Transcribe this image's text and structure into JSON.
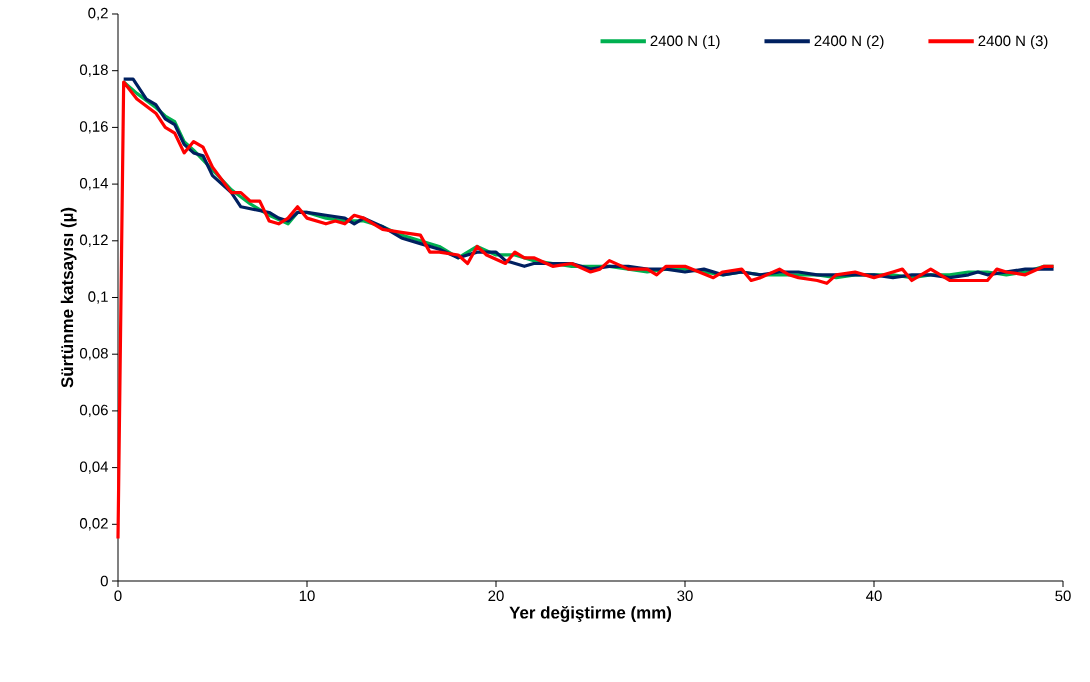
{
  "chart_data": {
    "type": "line",
    "xlabel": "Yer değiştirme (mm)",
    "ylabel": "Sürtünme katsayısı (µ)",
    "xlim": [
      0,
      50
    ],
    "ylim": [
      0,
      0.2
    ],
    "xticks": [
      0,
      10,
      20,
      30,
      40,
      50
    ],
    "yticks": [
      0,
      {
        "value": 0.02,
        "label": "0,02"
      },
      {
        "value": 0.04,
        "label": "0,04"
      },
      {
        "value": 0.06,
        "label": "0,06"
      },
      {
        "value": 0.08,
        "label": "0,08"
      },
      {
        "value": 0.1,
        "label": "0,1"
      },
      {
        "value": 0.12,
        "label": "0,12"
      },
      {
        "value": 0.14,
        "label": "0,14"
      },
      {
        "value": 0.16,
        "label": "0,16"
      },
      {
        "value": 0.18,
        "label": "0,18"
      },
      {
        "value": 0.2,
        "label": "0,2"
      }
    ],
    "grid": false,
    "legend": "top right",
    "marker": "none",
    "line_style": "solid",
    "series": [
      {
        "name": "2400 N (1)",
        "color": "#00b050",
        "x": [
          0.3,
          1,
          2,
          2.5,
          3,
          3.5,
          4,
          5,
          6,
          7,
          8,
          9,
          9.5,
          10,
          11,
          12,
          13,
          14,
          15,
          16,
          17,
          18,
          19,
          20,
          21,
          22,
          23,
          24,
          25,
          26,
          27,
          28,
          29,
          30,
          31,
          32,
          33,
          34,
          35,
          36,
          37,
          38,
          39,
          40,
          41,
          42,
          43,
          44,
          45,
          46,
          47,
          48,
          49,
          49.5
        ],
        "values": [
          0.176,
          0.172,
          0.167,
          0.164,
          0.162,
          0.155,
          0.152,
          0.145,
          0.138,
          0.133,
          0.129,
          0.126,
          0.13,
          0.13,
          0.128,
          0.127,
          0.127,
          0.125,
          0.122,
          0.12,
          0.118,
          0.114,
          0.118,
          0.115,
          0.115,
          0.113,
          0.112,
          0.111,
          0.111,
          0.111,
          0.11,
          0.109,
          0.11,
          0.11,
          0.109,
          0.108,
          0.109,
          0.108,
          0.108,
          0.108,
          0.108,
          0.107,
          0.108,
          0.108,
          0.108,
          0.107,
          0.108,
          0.108,
          0.109,
          0.109,
          0.108,
          0.109,
          0.111,
          0.111
        ]
      },
      {
        "name": "2400 N (2)",
        "color": "#002060",
        "x": [
          0.3,
          0.8,
          1.5,
          2,
          2.5,
          3,
          3.5,
          4,
          4.5,
          5,
          6,
          6.5,
          8,
          8.5,
          9,
          9.5,
          10,
          11,
          12,
          12.5,
          13,
          14,
          15,
          16,
          17,
          18,
          19,
          20,
          20.5,
          21.5,
          22,
          24,
          25,
          26,
          27,
          28,
          29,
          30,
          31,
          32,
          33,
          34,
          35,
          36,
          37,
          38,
          39,
          40,
          41,
          42,
          43,
          44,
          45,
          45.5,
          46,
          47,
          48,
          49.5
        ],
        "values": [
          0.177,
          0.177,
          0.17,
          0.168,
          0.163,
          0.161,
          0.154,
          0.151,
          0.15,
          0.143,
          0.137,
          0.132,
          0.13,
          0.128,
          0.127,
          0.13,
          0.13,
          0.129,
          0.128,
          0.126,
          0.128,
          0.125,
          0.121,
          0.119,
          0.117,
          0.114,
          0.116,
          0.116,
          0.113,
          0.111,
          0.112,
          0.112,
          0.11,
          0.111,
          0.111,
          0.11,
          0.11,
          0.109,
          0.11,
          0.108,
          0.109,
          0.108,
          0.109,
          0.109,
          0.108,
          0.108,
          0.108,
          0.108,
          0.107,
          0.108,
          0.108,
          0.107,
          0.108,
          0.109,
          0.108,
          0.109,
          0.11,
          0.11
        ]
      },
      {
        "name": "2400 N (3)",
        "color": "#ff0000",
        "x": [
          0,
          0.3,
          1,
          2,
          2.5,
          3,
          3.5,
          4,
          4.5,
          5,
          6,
          6.5,
          7,
          7.5,
          8,
          8.5,
          9,
          9.5,
          10,
          11,
          11.5,
          12,
          12.5,
          13,
          14,
          15,
          16,
          16.5,
          17,
          18,
          18.5,
          19,
          19.5,
          20.5,
          21,
          21.5,
          22,
          23,
          24,
          25,
          25.5,
          26,
          27,
          28,
          28.5,
          29,
          30,
          31.5,
          32,
          33,
          33.5,
          34,
          35,
          35.5,
          36,
          37,
          37.5,
          38,
          39,
          40,
          41,
          41.5,
          42,
          43,
          44,
          45,
          46,
          46.5,
          47,
          48,
          49,
          49.5
        ],
        "values": [
          0.015,
          0.176,
          0.17,
          0.165,
          0.16,
          0.158,
          0.151,
          0.155,
          0.153,
          0.146,
          0.137,
          0.137,
          0.134,
          0.134,
          0.127,
          0.126,
          0.128,
          0.132,
          0.128,
          0.126,
          0.127,
          0.126,
          0.129,
          0.128,
          0.124,
          0.123,
          0.122,
          0.116,
          0.116,
          0.115,
          0.112,
          0.118,
          0.115,
          0.112,
          0.116,
          0.114,
          0.114,
          0.111,
          0.112,
          0.109,
          0.11,
          0.113,
          0.11,
          0.11,
          0.108,
          0.111,
          0.111,
          0.107,
          0.109,
          0.11,
          0.106,
          0.107,
          0.11,
          0.108,
          0.107,
          0.106,
          0.105,
          0.108,
          0.109,
          0.107,
          0.109,
          0.11,
          0.106,
          0.11,
          0.106,
          0.106,
          0.106,
          0.11,
          0.109,
          0.108,
          0.111,
          0.111
        ]
      }
    ]
  }
}
